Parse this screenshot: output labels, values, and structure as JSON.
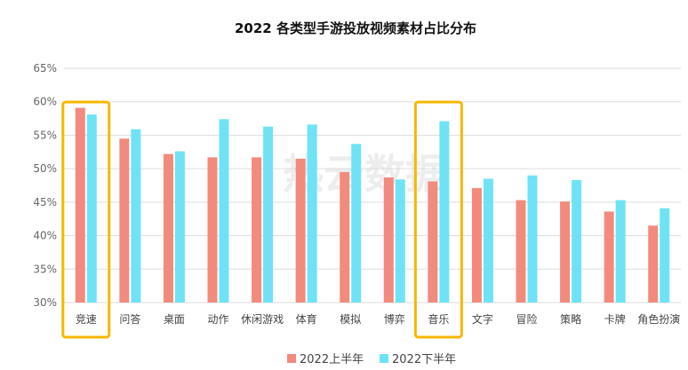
{
  "chart_data": {
    "type": "bar",
    "title": "2022 各类型手游投放视频素材占比分布",
    "categories": [
      "竞速",
      "问答",
      "桌面",
      "动作",
      "休闲游戏",
      "体育",
      "模拟",
      "博弈",
      "音乐",
      "文字",
      "冒险",
      "策略",
      "卡牌",
      "角色扮演"
    ],
    "series": [
      {
        "name": "2022上半年",
        "color": "#F28B7D",
        "values": [
          59.1,
          54.5,
          52.2,
          51.7,
          51.7,
          51.5,
          49.5,
          48.7,
          48.1,
          47.1,
          45.3,
          45.1,
          43.6,
          41.5
        ]
      },
      {
        "name": "2022下半年",
        "color": "#6FE3F5",
        "values": [
          58.1,
          55.9,
          52.6,
          57.4,
          56.3,
          56.6,
          53.7,
          48.4,
          57.1,
          48.5,
          49.0,
          48.3,
          45.3,
          44.1
        ]
      }
    ],
    "yticks": [
      "30%",
      "35%",
      "40%",
      "45%",
      "50%",
      "55%",
      "60%",
      "65%"
    ],
    "ylim": [
      30,
      65
    ],
    "grid": true,
    "legend_position": "bottom-center",
    "highlighted_categories": [
      "竞速",
      "音乐"
    ],
    "highlight_color": "#F5B800",
    "watermark": "热云数据"
  }
}
